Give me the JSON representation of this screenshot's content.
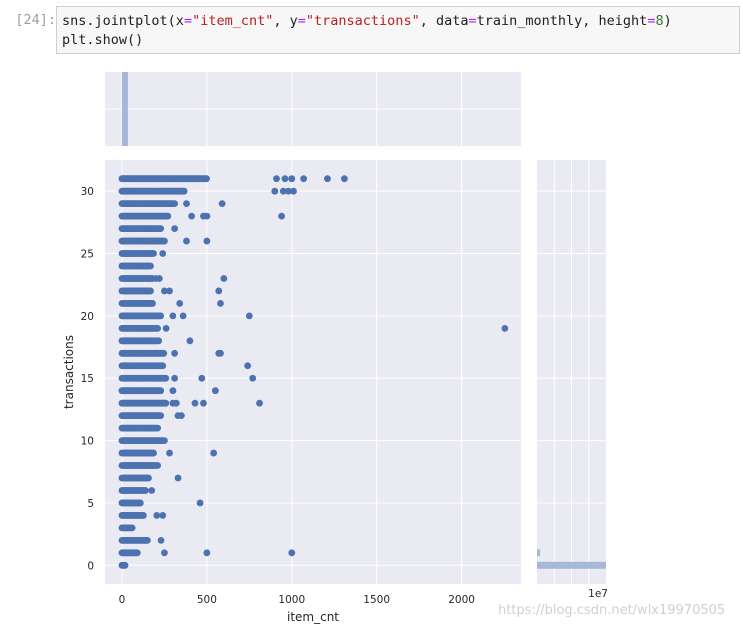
{
  "notebook": {
    "prompt": "[24]:",
    "code_line1": {
      "call": "sns.jointplot(",
      "x_kw": "x",
      "eq1": "=",
      "x_val": "\"item_cnt\"",
      "sep1": ", ",
      "y_kw": "y",
      "eq2": "=",
      "y_val": "\"transactions\"",
      "sep2": ", data",
      "eq3": "=",
      "data_val": "train_monthly, height",
      "eq4": "=",
      "height_val": "8",
      "close": ")"
    },
    "code_line2": "plt.show()"
  },
  "watermark": "https://blog.csdn.net/wlx19970505",
  "chart_data": {
    "type": "scatter",
    "xlabel": "item_cnt",
    "ylabel": "transactions",
    "xlim": [
      -100,
      2350
    ],
    "ylim": [
      -1.5,
      32.5
    ],
    "xticks": [
      0,
      500,
      1000,
      1500,
      2000
    ],
    "yticks": [
      0,
      5,
      10,
      15,
      20,
      25,
      30
    ],
    "right_marginal_offset_label": "1e7",
    "colors": {
      "points": "#4c72b0",
      "hist": "#a6b7d7",
      "background": "#eaeaf2",
      "grid": "#ffffff"
    },
    "bands": [
      {
        "y": 0,
        "max": 20
      },
      {
        "y": 1,
        "max": 90
      },
      {
        "y": 2,
        "max": 150
      },
      {
        "y": 3,
        "max": 60
      },
      {
        "y": 4,
        "max": 130
      },
      {
        "y": 5,
        "max": 110
      },
      {
        "y": 6,
        "max": 140
      },
      {
        "y": 7,
        "max": 160
      },
      {
        "y": 8,
        "max": 200
      },
      {
        "y": 9,
        "max": 190
      },
      {
        "y": 10,
        "max": 240
      },
      {
        "y": 11,
        "max": 210
      },
      {
        "y": 12,
        "max": 230
      },
      {
        "y": 13,
        "max": 260
      },
      {
        "y": 14,
        "max": 230
      },
      {
        "y": 15,
        "max": 260
      },
      {
        "y": 16,
        "max": 240
      },
      {
        "y": 17,
        "max": 250
      },
      {
        "y": 18,
        "max": 220
      },
      {
        "y": 19,
        "max": 210
      },
      {
        "y": 20,
        "max": 230
      },
      {
        "y": 21,
        "max": 180
      },
      {
        "y": 22,
        "max": 170
      },
      {
        "y": 23,
        "max": 180
      },
      {
        "y": 24,
        "max": 170
      },
      {
        "y": 25,
        "max": 190
      },
      {
        "y": 26,
        "max": 240
      },
      {
        "y": 27,
        "max": 230
      },
      {
        "y": 28,
        "max": 270
      },
      {
        "y": 29,
        "max": 300
      },
      {
        "y": 30,
        "max": 370
      },
      {
        "y": 31,
        "max": 500
      }
    ],
    "outliers": [
      {
        "x": 2255,
        "y": 19
      },
      {
        "x": 1000,
        "y": 1
      },
      {
        "x": 500,
        "y": 1
      },
      {
        "x": 250,
        "y": 1
      },
      {
        "x": 80,
        "y": 1
      },
      {
        "x": 230,
        "y": 2
      },
      {
        "x": 240,
        "y": 4
      },
      {
        "x": 205,
        "y": 4
      },
      {
        "x": 460,
        "y": 5
      },
      {
        "x": 175,
        "y": 6
      },
      {
        "x": 330,
        "y": 7
      },
      {
        "x": 210,
        "y": 8
      },
      {
        "x": 280,
        "y": 9
      },
      {
        "x": 540,
        "y": 9
      },
      {
        "x": 250,
        "y": 10
      },
      {
        "x": 330,
        "y": 12
      },
      {
        "x": 350,
        "y": 12
      },
      {
        "x": 300,
        "y": 13
      },
      {
        "x": 320,
        "y": 13
      },
      {
        "x": 430,
        "y": 13
      },
      {
        "x": 480,
        "y": 13
      },
      {
        "x": 810,
        "y": 13
      },
      {
        "x": 300,
        "y": 14
      },
      {
        "x": 550,
        "y": 14
      },
      {
        "x": 310,
        "y": 15
      },
      {
        "x": 470,
        "y": 15
      },
      {
        "x": 770,
        "y": 15
      },
      {
        "x": 740,
        "y": 16
      },
      {
        "x": 310,
        "y": 17
      },
      {
        "x": 570,
        "y": 17
      },
      {
        "x": 580,
        "y": 17
      },
      {
        "x": 400,
        "y": 18
      },
      {
        "x": 260,
        "y": 19
      },
      {
        "x": 300,
        "y": 20
      },
      {
        "x": 360,
        "y": 20
      },
      {
        "x": 750,
        "y": 20
      },
      {
        "x": 340,
        "y": 21
      },
      {
        "x": 580,
        "y": 21
      },
      {
        "x": 250,
        "y": 22
      },
      {
        "x": 280,
        "y": 22
      },
      {
        "x": 570,
        "y": 22
      },
      {
        "x": 200,
        "y": 23
      },
      {
        "x": 220,
        "y": 23
      },
      {
        "x": 600,
        "y": 23
      },
      {
        "x": 240,
        "y": 25
      },
      {
        "x": 250,
        "y": 26
      },
      {
        "x": 380,
        "y": 26
      },
      {
        "x": 500,
        "y": 26
      },
      {
        "x": 310,
        "y": 27
      },
      {
        "x": 410,
        "y": 28
      },
      {
        "x": 480,
        "y": 28
      },
      {
        "x": 500,
        "y": 28
      },
      {
        "x": 940,
        "y": 28
      },
      {
        "x": 310,
        "y": 29
      },
      {
        "x": 380,
        "y": 29
      },
      {
        "x": 590,
        "y": 29
      },
      {
        "x": 900,
        "y": 30
      },
      {
        "x": 950,
        "y": 30
      },
      {
        "x": 980,
        "y": 30
      },
      {
        "x": 1010,
        "y": 30
      },
      {
        "x": 910,
        "y": 31
      },
      {
        "x": 960,
        "y": 31
      },
      {
        "x": 1000,
        "y": 31
      },
      {
        "x": 1070,
        "y": 31
      },
      {
        "x": 1210,
        "y": 31
      },
      {
        "x": 1310,
        "y": 31
      }
    ],
    "top_histogram": {
      "bin_start": 0,
      "bin_end": 35,
      "height_fraction": 1.0
    },
    "right_histogram": [
      {
        "y": 0,
        "fraction": 1.0
      },
      {
        "y": 1,
        "fraction": 0.045
      }
    ]
  }
}
